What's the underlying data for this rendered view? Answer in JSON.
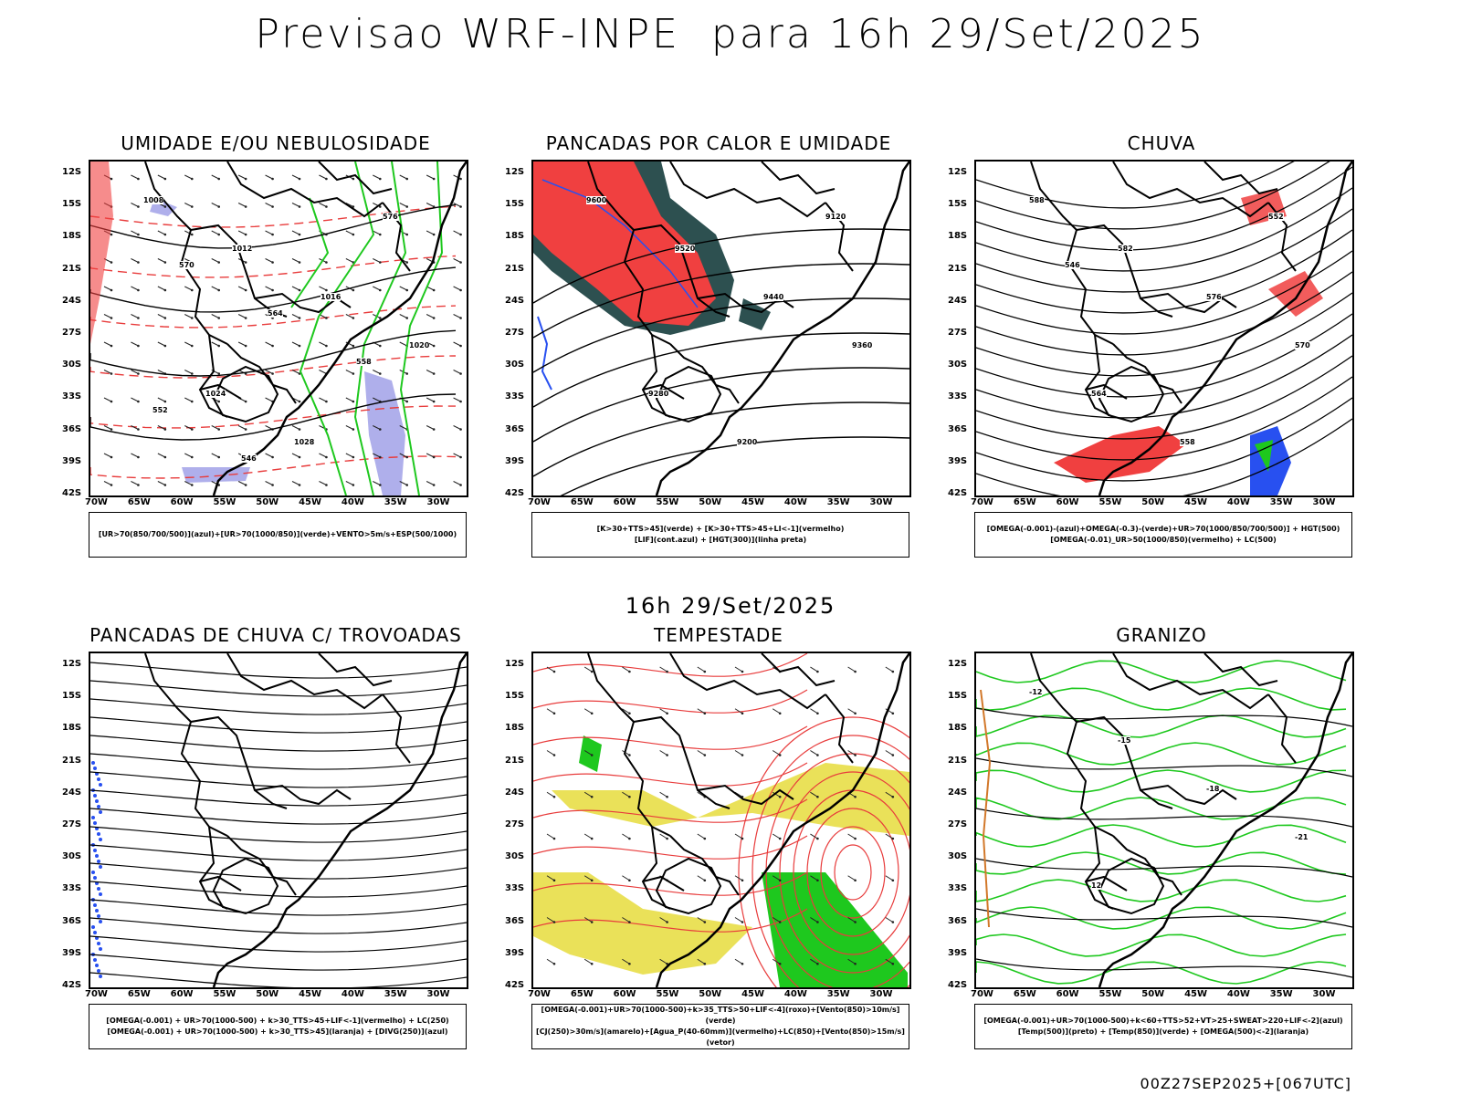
{
  "main_title": "Previsao WRF-INPE  para 16h 29/Set/2025",
  "mid_date": "16h 29/Set/2025",
  "footer": "00Z27SEP2025+[067UTC]",
  "lat_labels": [
    "12S",
    "15S",
    "18S",
    "21S",
    "24S",
    "27S",
    "30S",
    "33S",
    "36S",
    "39S",
    "42S"
  ],
  "lon_labels": [
    "70W",
    "65W",
    "60W",
    "55W",
    "50W",
    "45W",
    "40W",
    "35W",
    "30W"
  ],
  "panels": [
    {
      "title": "UMIDADE E/OU NEBULOSIDADE",
      "legend": [
        "[UR>70(850/700/500)](azul)+[UR>70(1000/850)](verde)+VENTO>5m/s+ESP(500/1000)"
      ],
      "contour_labels": [
        "1008",
        "1012",
        "1016",
        "1020",
        "1024",
        "1028",
        "576",
        "570",
        "564",
        "558",
        "552",
        "546"
      ]
    },
    {
      "title": "PANCADAS POR CALOR E UMIDADE",
      "legend": [
        "[K>30+TTS>45](verde) + [K>30+TTS>45+LI<-1](vermelho)",
        "[LIF](cont.azul) + [HGT(300)](linha preta)"
      ],
      "contour_labels": [
        "9600",
        "9520",
        "9440",
        "9360",
        "9280",
        "9200",
        "9120"
      ]
    },
    {
      "title": "CHUVA",
      "legend": [
        "[OMEGA(-0.001)-(azul)+OMEGA(-0.3)-(verde)+UR>70(1000/850/700/500)] + HGT(500)",
        "[OMEGA(-0.01)_UR>50(1000/850)(vermelho) + LC(500)"
      ],
      "contour_labels": [
        "588",
        "582",
        "576",
        "570",
        "564",
        "558",
        "552",
        "546"
      ]
    },
    {
      "title": "PANCADAS DE CHUVA C/ TROVOADAS",
      "legend": [
        "[OMEGA(-0.001) + UR>70(1000-500) + k>30_TTS>45+LIF<-1](vermelho) + LC(250)",
        "[OMEGA(-0.001) + UR>70(1000-500) + k>30_TTS>45](laranja) + [DIVG(250)](azul)"
      ],
      "contour_labels": []
    },
    {
      "title": "TEMPESTADE",
      "legend": [
        "[OMEGA(-0.001)+UR>70(1000-500)+k>35_TTS>50+LIF<-4](roxo)+[Vento(850)>10m/s](verde)",
        "[CJ(250)>30m/s](amarelo)+[Agua_P(40-60mm)](vermelho)+LC(850)+[Vento(850)>15m/s](vetor)"
      ],
      "contour_labels": []
    },
    {
      "title": "GRANIZO",
      "legend": [
        "[OMEGA(-0.001)+UR>70(1000-500)+k<60+TTS>52+VT>25+SWEAT>220+LIF<-2](azul)",
        "[Temp(500)](preto) + [Temp(850)](verde) + [OMEGA(500)<-2](laranja)"
      ],
      "contour_labels": [
        "-12",
        "-15",
        "-18",
        "-21",
        "12"
      ]
    }
  ],
  "colors": {
    "land_outline": "#000000",
    "humid_blue": "#9b9be6",
    "green": "#1ec81e",
    "red": "#f04040",
    "dark_teal": "#2d5050",
    "blue": "#2850f0",
    "yellow": "#e6dc3c",
    "contour_red": "#e83c3c"
  }
}
